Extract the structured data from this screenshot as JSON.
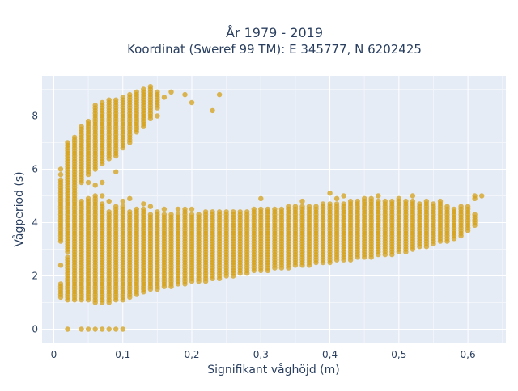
{
  "chart_data": {
    "type": "scatter",
    "title_line1": "År 1979 - 2019",
    "title_line2": "Koordinat (Sweref 99 TM): E 345777, N 6202425",
    "xlabel": "Signifikant våghöjd (m)",
    "ylabel": "Vågperiod (s)",
    "xlim": [
      -0.017,
      0.655
    ],
    "ylim": [
      -0.5,
      9.5
    ],
    "x_ticks": [
      0,
      0.1,
      0.2,
      0.3,
      0.4,
      0.5,
      0.6
    ],
    "x_tick_labels": [
      "0",
      "0,1",
      "0,2",
      "0,3",
      "0,4",
      "0,5",
      "0,6"
    ],
    "y_ticks": [
      0,
      2,
      4,
      6,
      8
    ],
    "y_tick_labels": [
      "0",
      "2",
      "4",
      "6",
      "8"
    ],
    "grid": true,
    "legend": "none",
    "point_color": "#d4a017",
    "plot_bg": "#e5ecf6",
    "series": [
      {
        "x_step": 0.01,
        "columns": [
          {
            "x": 0.01,
            "ranges": [
              [
                1.2,
                1.7
              ],
              [
                3.3,
                5.6
              ]
            ],
            "points": [
              2.4,
              6.0,
              5.8
            ]
          },
          {
            "x": 0.02,
            "ranges": [
              [
                1.1,
                2.7
              ],
              [
                2.9,
                7.0
              ]
            ],
            "points": [
              0.0
            ]
          },
          {
            "x": 0.03,
            "ranges": [
              [
                1.1,
                2.9
              ],
              [
                3.0,
                7.2
              ]
            ],
            "points": []
          },
          {
            "x": 0.04,
            "ranges": [
              [
                1.1,
                4.8
              ],
              [
                5.6,
                7.6
              ]
            ],
            "points": [
              0.0,
              5.5
            ]
          },
          {
            "x": 0.05,
            "ranges": [
              [
                1.1,
                4.9
              ],
              [
                5.8,
                7.8
              ]
            ],
            "points": [
              0.0,
              5.5
            ]
          },
          {
            "x": 0.06,
            "ranges": [
              [
                1.0,
                5.0
              ],
              [
                6.0,
                8.4
              ]
            ],
            "points": [
              0.0,
              5.4
            ]
          },
          {
            "x": 0.07,
            "ranges": [
              [
                1.0,
                4.7
              ],
              [
                6.2,
                8.5
              ]
            ],
            "points": [
              0.0,
              5.5,
              5.0
            ]
          },
          {
            "x": 0.08,
            "ranges": [
              [
                1.0,
                4.4
              ],
              [
                6.4,
                8.6
              ]
            ],
            "points": [
              0.0,
              4.8
            ]
          },
          {
            "x": 0.09,
            "ranges": [
              [
                1.05,
                4.5
              ],
              [
                6.5,
                8.6
              ]
            ],
            "points": [
              0.0,
              5.9,
              4.6
            ]
          },
          {
            "x": 0.1,
            "ranges": [
              [
                1.1,
                4.6
              ],
              [
                6.8,
                8.7
              ]
            ],
            "points": [
              0.0,
              4.8
            ]
          },
          {
            "x": 0.11,
            "ranges": [
              [
                1.2,
                4.4
              ],
              [
                7.0,
                8.8
              ]
            ],
            "points": [
              4.9
            ]
          },
          {
            "x": 0.12,
            "ranges": [
              [
                1.3,
                4.5
              ],
              [
                7.4,
                8.9
              ]
            ],
            "points": []
          },
          {
            "x": 0.13,
            "ranges": [
              [
                1.4,
                4.5
              ],
              [
                7.6,
                9.0
              ]
            ],
            "points": [
              4.7
            ]
          },
          {
            "x": 0.14,
            "ranges": [
              [
                1.5,
                4.3
              ],
              [
                8.0,
                9.0
              ]
            ],
            "points": [
              4.6,
              7.9,
              9.1
            ]
          },
          {
            "x": 0.15,
            "ranges": [
              [
                1.5,
                4.4
              ],
              [
                8.3,
                8.9
              ]
            ],
            "points": [
              8.0
            ]
          },
          {
            "x": 0.16,
            "ranges": [
              [
                1.6,
                4.3
              ]
            ],
            "points": [
              4.5,
              8.7
            ]
          },
          {
            "x": 0.17,
            "ranges": [
              [
                1.6,
                4.3
              ]
            ],
            "points": [
              8.9
            ]
          },
          {
            "x": 0.18,
            "ranges": [
              [
                1.7,
                4.3
              ]
            ],
            "points": [
              4.5
            ]
          },
          {
            "x": 0.19,
            "ranges": [
              [
                1.7,
                4.4
              ]
            ],
            "points": [
              4.5,
              8.8
            ]
          },
          {
            "x": 0.2,
            "ranges": [
              [
                1.8,
                4.3
              ]
            ],
            "points": [
              4.5,
              8.5
            ]
          },
          {
            "x": 0.21,
            "ranges": [
              [
                1.8,
                4.3
              ]
            ],
            "points": []
          },
          {
            "x": 0.22,
            "ranges": [
              [
                1.8,
                4.4
              ]
            ],
            "points": []
          },
          {
            "x": 0.23,
            "ranges": [
              [
                1.9,
                4.4
              ]
            ],
            "points": [
              8.2
            ]
          },
          {
            "x": 0.24,
            "ranges": [
              [
                1.9,
                4.4
              ]
            ],
            "points": [
              8.8
            ]
          },
          {
            "x": 0.25,
            "ranges": [
              [
                2.0,
                4.4
              ]
            ],
            "points": []
          },
          {
            "x": 0.26,
            "ranges": [
              [
                2.0,
                4.4
              ]
            ],
            "points": []
          },
          {
            "x": 0.27,
            "ranges": [
              [
                2.1,
                4.4
              ]
            ],
            "points": []
          },
          {
            "x": 0.28,
            "ranges": [
              [
                2.1,
                4.4
              ]
            ],
            "points": []
          },
          {
            "x": 0.29,
            "ranges": [
              [
                2.2,
                4.5
              ]
            ],
            "points": []
          },
          {
            "x": 0.3,
            "ranges": [
              [
                2.2,
                4.5
              ]
            ],
            "points": [
              4.9
            ]
          },
          {
            "x": 0.31,
            "ranges": [
              [
                2.2,
                4.5
              ]
            ],
            "points": []
          },
          {
            "x": 0.32,
            "ranges": [
              [
                2.3,
                4.5
              ]
            ],
            "points": []
          },
          {
            "x": 0.33,
            "ranges": [
              [
                2.3,
                4.5
              ]
            ],
            "points": []
          },
          {
            "x": 0.34,
            "ranges": [
              [
                2.3,
                4.6
              ]
            ],
            "points": []
          },
          {
            "x": 0.35,
            "ranges": [
              [
                2.4,
                4.6
              ]
            ],
            "points": []
          },
          {
            "x": 0.36,
            "ranges": [
              [
                2.4,
                4.6
              ]
            ],
            "points": [
              4.8
            ]
          },
          {
            "x": 0.37,
            "ranges": [
              [
                2.4,
                4.6
              ]
            ],
            "points": []
          },
          {
            "x": 0.38,
            "ranges": [
              [
                2.5,
                4.6
              ]
            ],
            "points": []
          },
          {
            "x": 0.39,
            "ranges": [
              [
                2.5,
                4.7
              ]
            ],
            "points": []
          },
          {
            "x": 0.4,
            "ranges": [
              [
                2.5,
                4.7
              ]
            ],
            "points": [
              5.1
            ]
          },
          {
            "x": 0.41,
            "ranges": [
              [
                2.6,
                4.7
              ]
            ],
            "points": [
              4.9
            ]
          },
          {
            "x": 0.42,
            "ranges": [
              [
                2.6,
                4.7
              ]
            ],
            "points": [
              5.0
            ]
          },
          {
            "x": 0.43,
            "ranges": [
              [
                2.6,
                4.8
              ]
            ],
            "points": []
          },
          {
            "x": 0.44,
            "ranges": [
              [
                2.7,
                4.8
              ]
            ],
            "points": []
          },
          {
            "x": 0.45,
            "ranges": [
              [
                2.7,
                4.8
              ]
            ],
            "points": [
              4.9
            ]
          },
          {
            "x": 0.46,
            "ranges": [
              [
                2.7,
                4.8
              ]
            ],
            "points": [
              4.9
            ]
          },
          {
            "x": 0.47,
            "ranges": [
              [
                2.8,
                4.8
              ]
            ],
            "points": [
              5.0
            ]
          },
          {
            "x": 0.48,
            "ranges": [
              [
                2.8,
                4.8
              ]
            ],
            "points": []
          },
          {
            "x": 0.49,
            "ranges": [
              [
                2.8,
                4.8
              ]
            ],
            "points": []
          },
          {
            "x": 0.5,
            "ranges": [
              [
                2.9,
                4.8
              ]
            ],
            "points": [
              4.9
            ]
          },
          {
            "x": 0.51,
            "ranges": [
              [
                2.9,
                4.8
              ]
            ],
            "points": []
          },
          {
            "x": 0.52,
            "ranges": [
              [
                3.0,
                4.8
              ]
            ],
            "points": [
              5.0
            ]
          },
          {
            "x": 0.53,
            "ranges": [
              [
                3.1,
                4.7
              ]
            ],
            "points": []
          },
          {
            "x": 0.54,
            "ranges": [
              [
                3.1,
                4.7
              ]
            ],
            "points": [
              4.8
            ]
          },
          {
            "x": 0.55,
            "ranges": [
              [
                3.2,
                4.7
              ]
            ],
            "points": []
          },
          {
            "x": 0.56,
            "ranges": [
              [
                3.3,
                4.7
              ]
            ],
            "points": [
              4.8
            ]
          },
          {
            "x": 0.57,
            "ranges": [
              [
                3.3,
                4.6
              ]
            ],
            "points": []
          },
          {
            "x": 0.58,
            "ranges": [
              [
                3.4,
                4.5
              ]
            ],
            "points": []
          },
          {
            "x": 0.59,
            "ranges": [
              [
                3.5,
                4.6
              ]
            ],
            "points": []
          },
          {
            "x": 0.6,
            "ranges": [
              [
                3.7,
                4.6
              ]
            ],
            "points": []
          },
          {
            "x": 0.61,
            "ranges": [
              [
                3.9,
                4.3
              ],
              [
                4.9,
                5.0
              ]
            ],
            "points": []
          },
          {
            "x": 0.62,
            "ranges": [],
            "points": [
              5.0
            ]
          }
        ]
      }
    ]
  }
}
